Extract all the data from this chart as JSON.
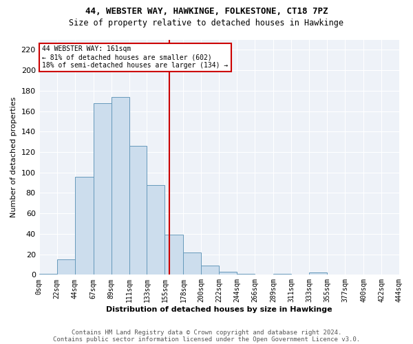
{
  "title1": "44, WEBSTER WAY, HAWKINGE, FOLKESTONE, CT18 7PZ",
  "title2": "Size of property relative to detached houses in Hawkinge",
  "xlabel": "Distribution of detached houses by size in Hawkinge",
  "ylabel": "Number of detached properties",
  "bin_edges": [
    0,
    22,
    44,
    67,
    89,
    111,
    133,
    155,
    178,
    200,
    222,
    244,
    266,
    289,
    311,
    333,
    355,
    377,
    400,
    422,
    444
  ],
  "bar_heights": [
    1,
    15,
    96,
    168,
    174,
    126,
    88,
    39,
    22,
    9,
    3,
    1,
    0,
    1,
    0,
    2,
    0,
    0,
    0,
    0
  ],
  "bar_color": "#ccdded",
  "bar_edge_color": "#6699bb",
  "vline_x": 161,
  "vline_color": "#cc0000",
  "annotation_title": "44 WEBSTER WAY: 161sqm",
  "annotation_line1": "← 81% of detached houses are smaller (602)",
  "annotation_line2": "18% of semi-detached houses are larger (134) →",
  "annotation_box_color": "#cc0000",
  "ylim": [
    0,
    230
  ],
  "yticks": [
    0,
    20,
    40,
    60,
    80,
    100,
    120,
    140,
    160,
    180,
    200,
    220
  ],
  "tick_labels": [
    "0sqm",
    "22sqm",
    "44sqm",
    "67sqm",
    "89sqm",
    "111sqm",
    "133sqm",
    "155sqm",
    "178sqm",
    "200sqm",
    "222sqm",
    "244sqm",
    "266sqm",
    "289sqm",
    "311sqm",
    "333sqm",
    "355sqm",
    "377sqm",
    "400sqm",
    "422sqm",
    "444sqm"
  ],
  "footer1": "Contains HM Land Registry data © Crown copyright and database right 2024.",
  "footer2": "Contains public sector information licensed under the Open Government Licence v3.0.",
  "bg_color": "#ffffff",
  "plot_bg_color": "#eef2f8",
  "grid_color": "#ffffff",
  "title1_fontsize": 9,
  "title2_fontsize": 8.5,
  "ylabel_fontsize": 8,
  "xlabel_fontsize": 8,
  "tick_fontsize": 7,
  "ytick_fontsize": 8,
  "footer_fontsize": 6.5
}
